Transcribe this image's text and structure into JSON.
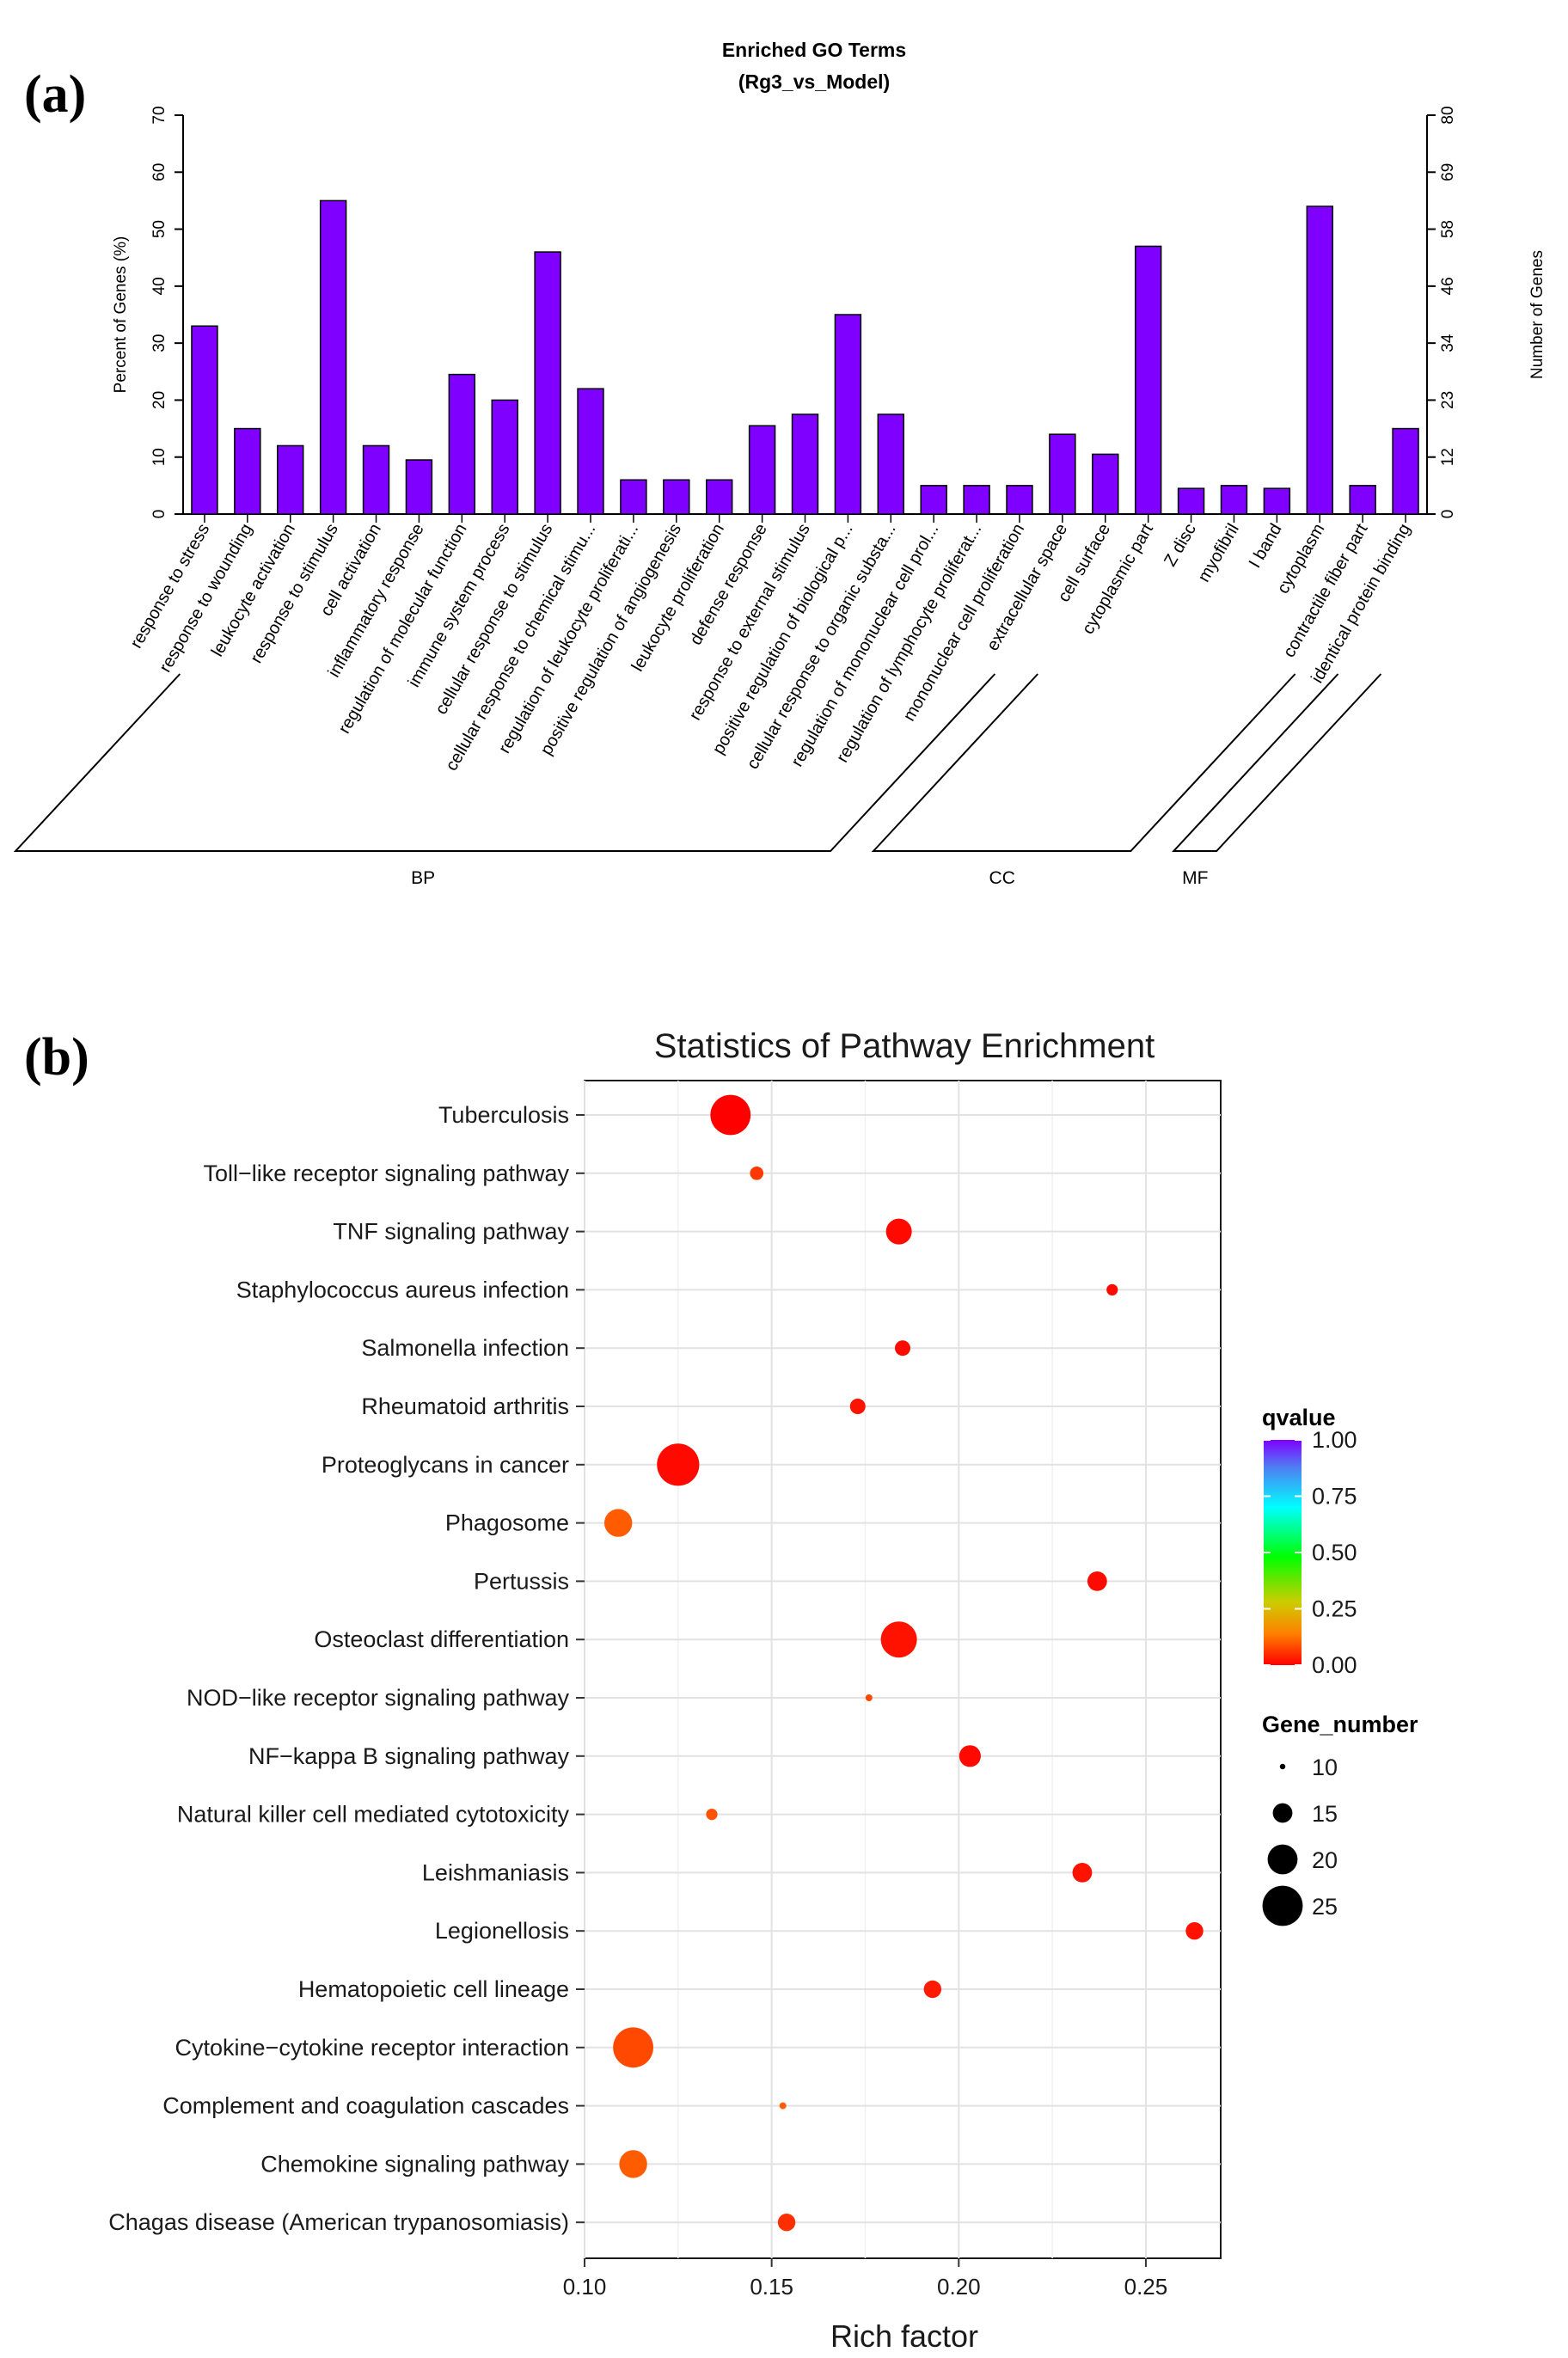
{
  "panel_a_tag": "(a)",
  "panel_b_tag": "(b)",
  "chart_data": [
    {
      "type": "bar",
      "title": "Enriched GO Terms",
      "subtitle": "(Rg3_vs_Model)",
      "ylabel": "Percent of Genes (%)",
      "y2label": "Number of Genes",
      "ylim": [
        0,
        70
      ],
      "yticks": [
        0,
        10,
        20,
        30,
        40,
        50,
        60,
        70
      ],
      "y2ticks": [
        "0",
        "12",
        "23",
        "34",
        "46",
        "58",
        "69",
        "80"
      ],
      "bar_color": "#7f00ff",
      "categories": [
        "response to stress",
        "response to wounding",
        "leukocyte activation",
        "response to stimulus",
        "cell activation",
        "inflammatory response",
        "regulation of molecular function",
        "immune system process",
        "cellular response to stimulus",
        "cellular response to chemical stimu...",
        "regulation of leukocyte proliferati...",
        "positive regulation of angiogenesis",
        "leukocyte proliferation",
        "defense response",
        "response to external stimulus",
        "positive regulation of biological p...",
        "cellular response to organic substa...",
        "regulation of mononuclear cell prol...",
        "regulation of lymphocyte proliferat...",
        "mononuclear cell proliferation",
        "extracellular space",
        "cell surface",
        "cytoplasmic part",
        "Z disc",
        "myofibril",
        "I band",
        "cytoplasm",
        "contractile fiber part",
        "identical protein binding"
      ],
      "values": [
        33,
        15,
        12,
        55,
        12,
        9.5,
        24.5,
        20,
        46,
        22,
        6,
        6,
        6,
        15.5,
        17.5,
        35,
        17.5,
        5,
        5,
        5,
        14,
        10.5,
        47,
        4.5,
        5,
        4.5,
        54,
        5,
        15
      ],
      "groups": [
        {
          "name": "BP",
          "start": 0,
          "end": 19
        },
        {
          "name": "CC",
          "start": 20,
          "end": 26
        },
        {
          "name": "MF",
          "start": 27,
          "end": 28
        }
      ]
    },
    {
      "type": "scatter",
      "title": "Statistics of Pathway Enrichment",
      "xlabel": "Rich factor",
      "xlim": [
        0.1,
        0.27
      ],
      "xticks": [
        "0.10",
        "0.15",
        "0.20",
        "0.25"
      ],
      "grid": true,
      "legend_position": "right",
      "color_legend": {
        "title": "qvalue",
        "ticks": [
          "1.00",
          "0.75",
          "0.50",
          "0.25",
          "0.00"
        ]
      },
      "size_legend": {
        "title": "Gene_number",
        "values": [
          10,
          15,
          20,
          25
        ]
      },
      "points": [
        {
          "pathway": "Tuberculosis",
          "rich_factor": 0.139,
          "gene_number": 25,
          "qvalue": 0.0
        },
        {
          "pathway": "Toll−like receptor signaling pathway",
          "rich_factor": 0.146,
          "gene_number": 12,
          "qvalue": 0.06
        },
        {
          "pathway": "TNF signaling pathway",
          "rich_factor": 0.184,
          "gene_number": 18,
          "qvalue": 0.01
        },
        {
          "pathway": "Staphylococcus aureus infection",
          "rich_factor": 0.241,
          "gene_number": 11,
          "qvalue": 0.01
        },
        {
          "pathway": "Salmonella infection",
          "rich_factor": 0.185,
          "gene_number": 13,
          "qvalue": 0.01
        },
        {
          "pathway": "Rheumatoid arthritis",
          "rich_factor": 0.173,
          "gene_number": 13,
          "qvalue": 0.02
        },
        {
          "pathway": "Proteoglycans in cancer",
          "rich_factor": 0.125,
          "gene_number": 26,
          "qvalue": 0.01
        },
        {
          "pathway": "Phagosome",
          "rich_factor": 0.109,
          "gene_number": 19,
          "qvalue": 0.1
        },
        {
          "pathway": "Pertussis",
          "rich_factor": 0.237,
          "gene_number": 15,
          "qvalue": 0.01
        },
        {
          "pathway": "Osteoclast differentiation",
          "rich_factor": 0.184,
          "gene_number": 23,
          "qvalue": 0.02
        },
        {
          "pathway": "NOD−like receptor signaling pathway",
          "rich_factor": 0.176,
          "gene_number": 8,
          "qvalue": 0.08
        },
        {
          "pathway": "NF−kappa B signaling pathway",
          "rich_factor": 0.203,
          "gene_number": 16,
          "qvalue": 0.01
        },
        {
          "pathway": "Natural killer cell mediated cytotoxicity",
          "rich_factor": 0.134,
          "gene_number": 11,
          "qvalue": 0.09
        },
        {
          "pathway": "Leishmaniasis",
          "rich_factor": 0.233,
          "gene_number": 15,
          "qvalue": 0.02
        },
        {
          "pathway": "Legionellosis",
          "rich_factor": 0.263,
          "gene_number": 14,
          "qvalue": 0.02
        },
        {
          "pathway": "Hematopoietic cell lineage",
          "rich_factor": 0.193,
          "gene_number": 14,
          "qvalue": 0.03
        },
        {
          "pathway": "Cytokine−cytokine receptor interaction",
          "rich_factor": 0.113,
          "gene_number": 25,
          "qvalue": 0.08
        },
        {
          "pathway": "Complement and coagulation cascades",
          "rich_factor": 0.153,
          "gene_number": 8,
          "qvalue": 0.1
        },
        {
          "pathway": "Chemokine signaling pathway",
          "rich_factor": 0.113,
          "gene_number": 19,
          "qvalue": 0.1
        },
        {
          "pathway": "Chagas disease (American trypanosomiasis)",
          "rich_factor": 0.154,
          "gene_number": 14,
          "qvalue": 0.05
        }
      ]
    }
  ]
}
